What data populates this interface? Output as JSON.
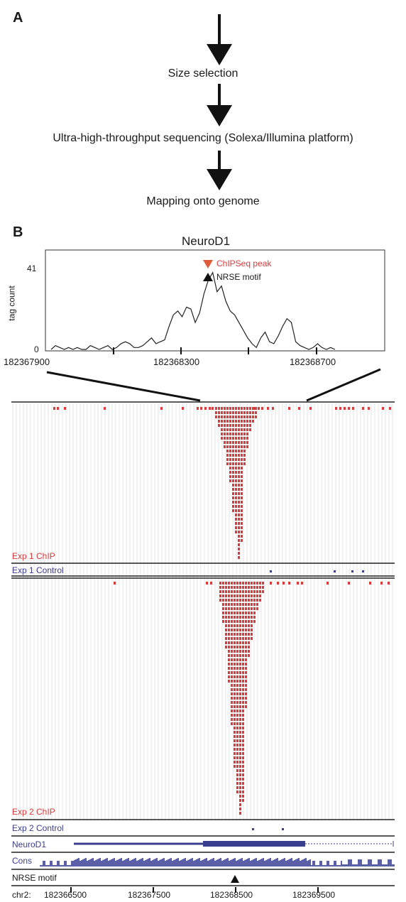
{
  "panel_a": {
    "label": "A",
    "steps": [
      "Size selection",
      "Ultra-high-throughput sequencing (Solexa/Illumina platform)",
      "Mapping onto genome"
    ]
  },
  "panel_b": {
    "label": "B",
    "chart_data": {
      "type": "line",
      "title": "NeuroD1",
      "ylabel": "tag count",
      "ylim": [
        0,
        41
      ],
      "yticks": [
        "41",
        "0"
      ],
      "xlim": [
        182367900,
        182368900
      ],
      "xticks": [
        "182367900",
        "182368300",
        "182368700"
      ],
      "annotations": [
        "ChIPSeq peak",
        "NRSE motif"
      ],
      "series": [
        {
          "values": [
            0,
            2,
            1,
            0,
            1,
            0,
            1,
            0,
            0,
            2,
            1,
            0,
            1,
            2,
            0,
            1,
            3,
            4,
            3,
            1,
            1,
            2,
            4,
            6,
            3,
            4,
            5,
            12,
            18,
            20,
            17,
            22,
            21,
            14,
            19,
            29,
            36,
            40,
            30,
            33,
            25,
            20,
            18,
            14,
            10,
            6,
            3,
            1,
            6,
            9,
            4,
            3,
            7,
            12,
            16,
            14,
            4,
            2,
            1,
            0,
            1,
            3,
            1,
            0,
            1,
            0
          ]
        }
      ]
    },
    "tracks": {
      "exp1_chip": "Exp 1 ChIP",
      "exp1_control": "Exp 1 Control",
      "exp2_chip": "Exp 2 ChIP",
      "exp2_control": "Exp 2 Control",
      "gene": "NeuroD1",
      "cons": "Cons",
      "nrse": "NRSE motif"
    },
    "axis": {
      "chrom": "chr2:",
      "ticks": [
        "182366500",
        "182367500",
        "182368500",
        "182369500"
      ]
    },
    "colors": {
      "chip": "#d93b3b",
      "control": "#3a3e8f",
      "gene": "#3a3e8f",
      "cons": "#5a5fa8"
    }
  }
}
